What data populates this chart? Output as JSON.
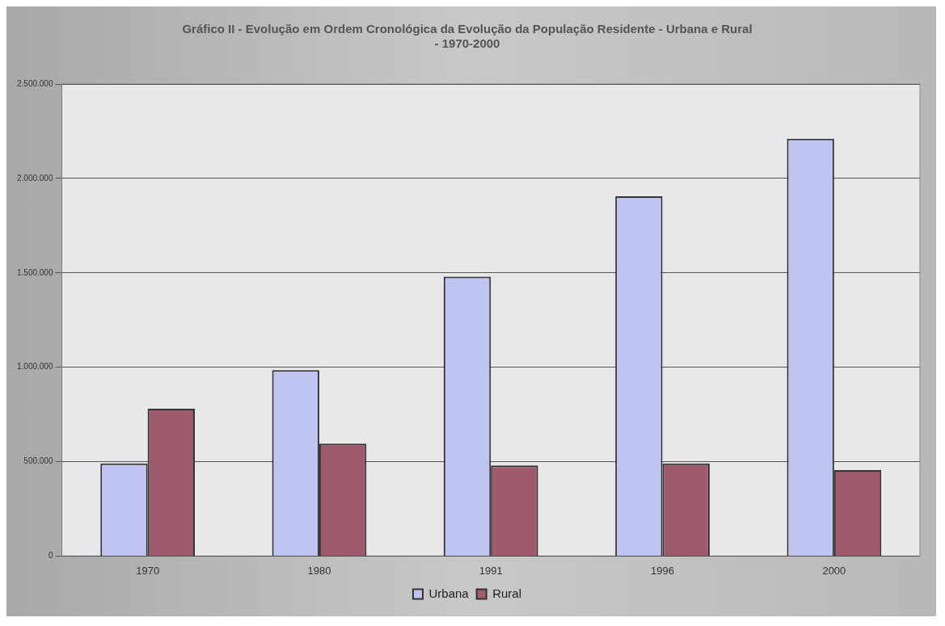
{
  "chart_data": {
    "type": "bar",
    "title": "Gráfico II - Evolução em Ordem Cronológica da Evolução da População Residente - Urbana e Rural\n- 1970-2000",
    "categories": [
      "1970",
      "1980",
      "1991",
      "1996",
      "2000"
    ],
    "series": [
      {
        "name": "Urbana",
        "color": "#c0c4f0",
        "values": [
          490000,
          985000,
          1480000,
          1905000,
          2210000
        ]
      },
      {
        "name": "Rural",
        "color": "#a05a6e",
        "values": [
          780000,
          595000,
          480000,
          490000,
          455000
        ]
      }
    ],
    "ylim": [
      0,
      2500000
    ],
    "yticks": [
      {
        "value": 0,
        "label": "0"
      },
      {
        "value": 500000,
        "label": "500.000"
      },
      {
        "value": 1000000,
        "label": "1.000.000"
      },
      {
        "value": 1500000,
        "label": "1.500.000"
      },
      {
        "value": 2000000,
        "label": "2.000.000"
      },
      {
        "value": 2500000,
        "label": "2.500.000"
      }
    ],
    "grid": "y",
    "legend": "bottom"
  }
}
